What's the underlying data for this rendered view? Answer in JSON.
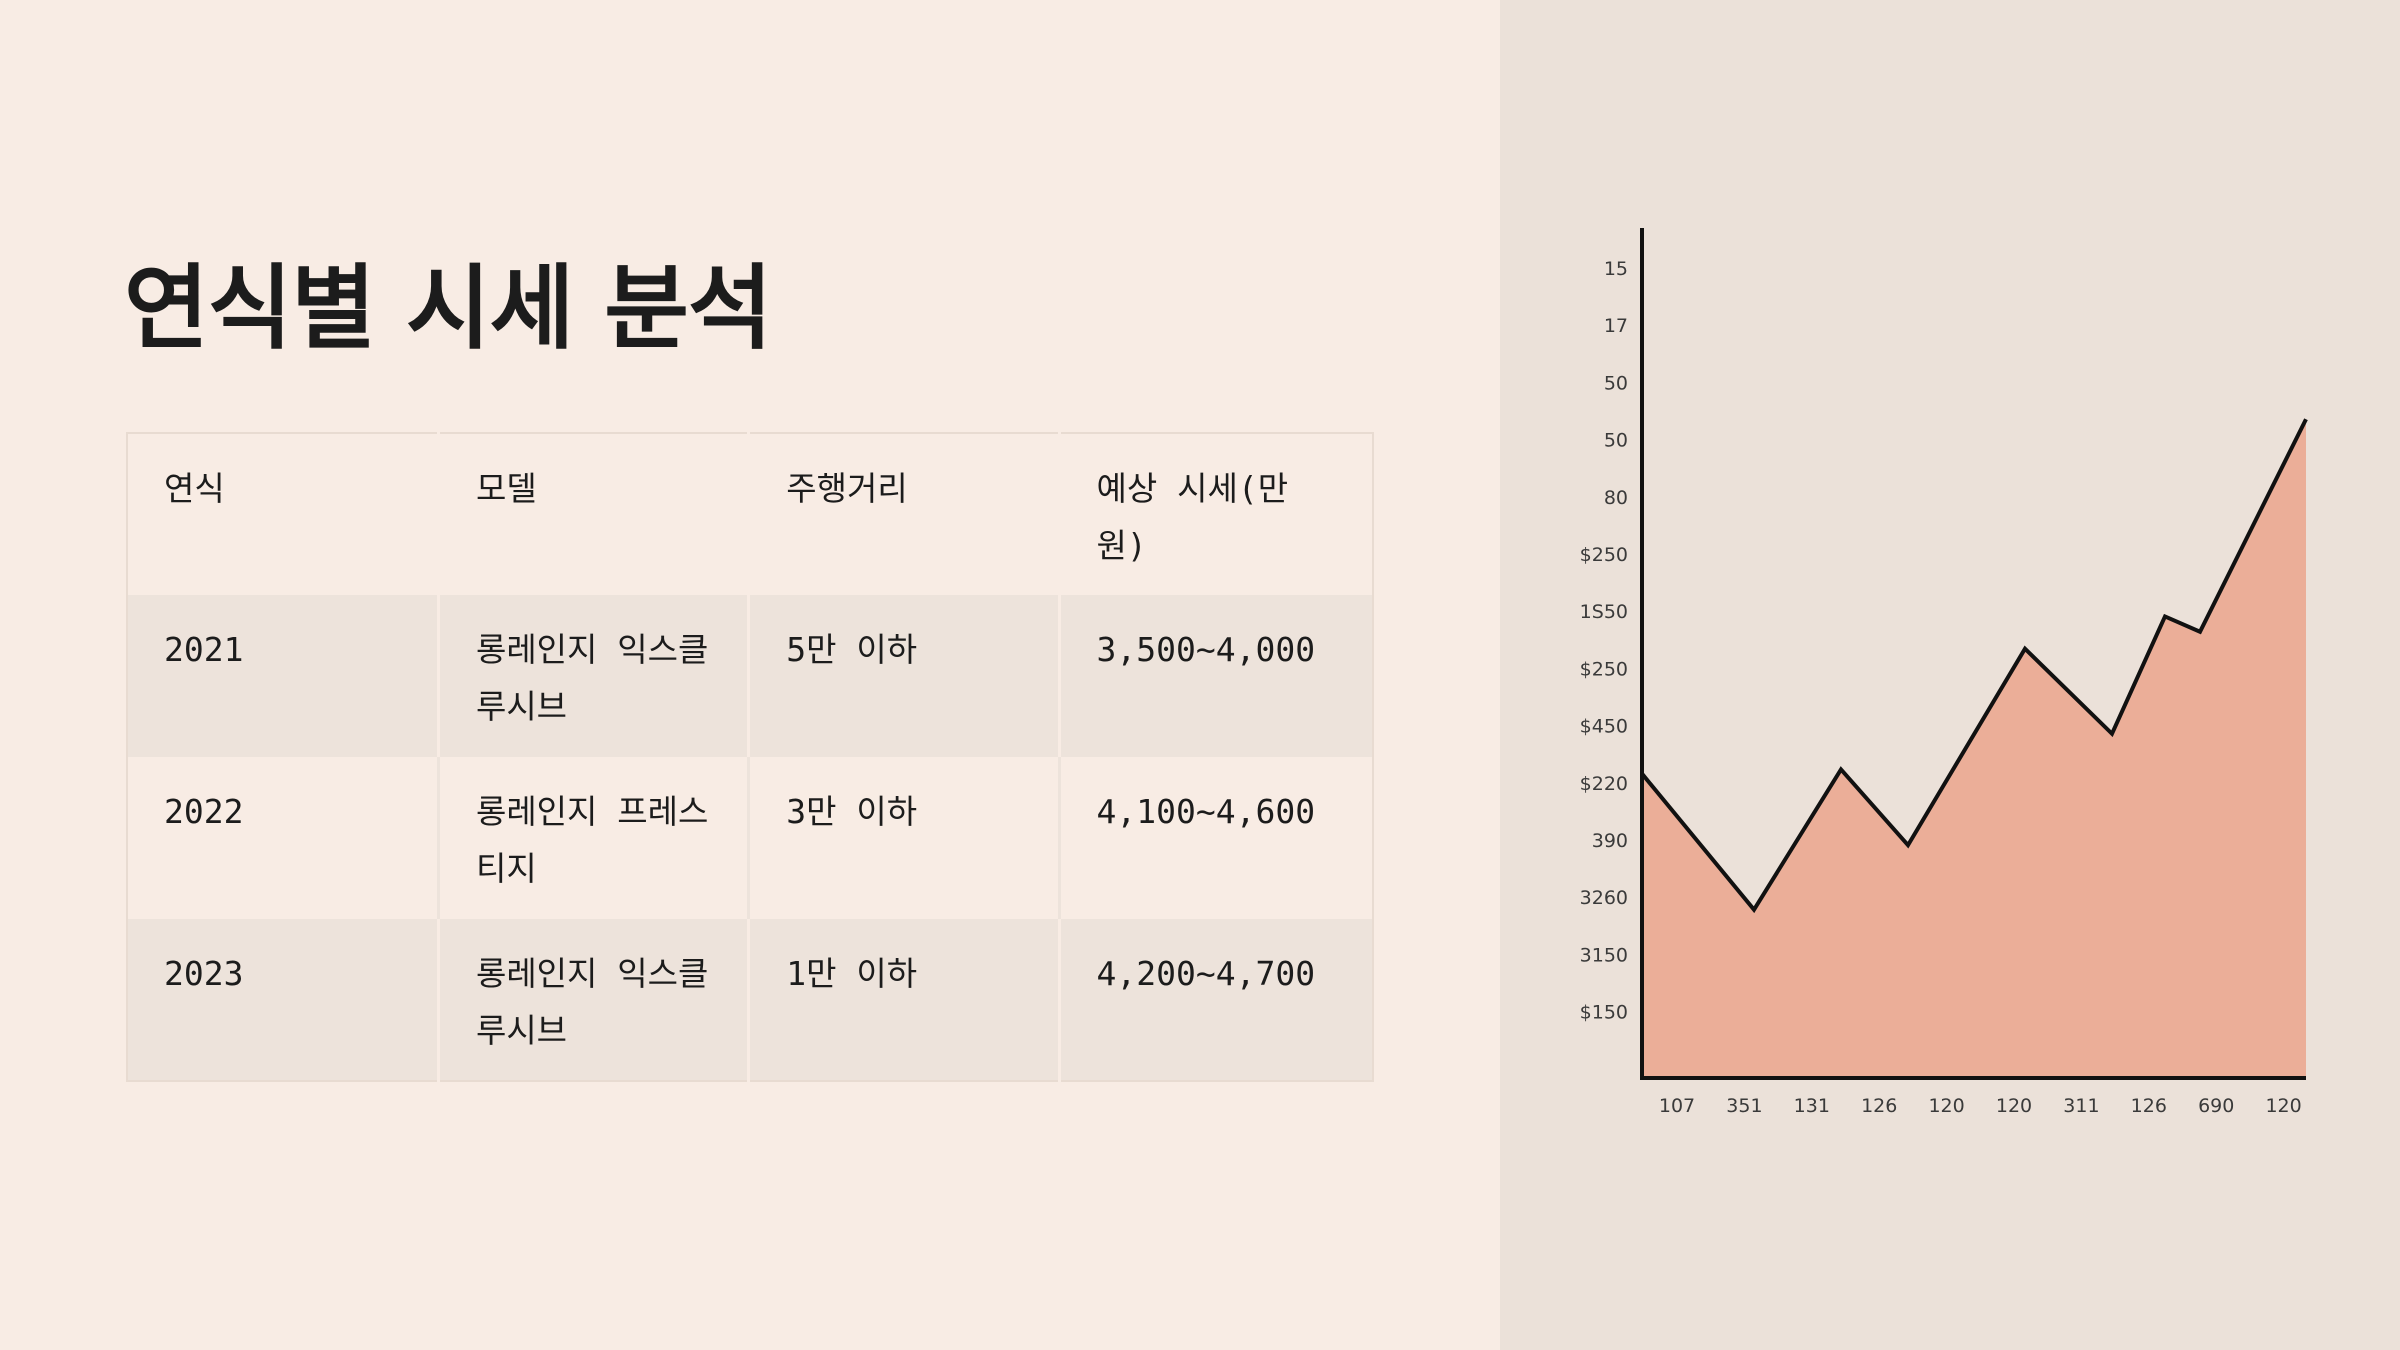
{
  "slide": {
    "title": "연식별 시세 분석"
  },
  "table": {
    "headers": [
      "연식",
      "모델",
      "주행거리",
      "예상 시세(만원)"
    ],
    "rows": [
      [
        "2021",
        "롱레인지 익스클루시브",
        "5만 이하",
        "3,500~4,000"
      ],
      [
        "2022",
        "롱레인지 프레스티지",
        "3만 이하",
        "4,100~4,600"
      ],
      [
        "2023",
        "롱레인지 익스클루시브",
        "1만 이하",
        "4,200~4,700"
      ]
    ]
  },
  "chart_data": {
    "type": "area",
    "title": "",
    "xlabel": "",
    "ylabel": "",
    "y_tick_labels": [
      "15",
      "17",
      "50",
      "50",
      "80",
      "$250",
      "1S50",
      "$250",
      "$450",
      "$220",
      "390",
      "3260",
      "3150",
      "$150"
    ],
    "x_tick_labels": [
      "107",
      "351",
      "131",
      "126",
      "120",
      "120",
      "311",
      "126",
      "690",
      "120"
    ],
    "series": [
      {
        "values": [
          0.358,
          0.198,
          0.363,
          0.274,
          0.505,
          0.405,
          0.543,
          0.525,
          0.775
        ]
      }
    ],
    "value_scale": "fraction of plot height (axis ticks unreadable)",
    "grid": false,
    "legend": "none",
    "colors": {
      "fill": "#ebae98",
      "line": "#111111",
      "axis": "#111111"
    }
  }
}
